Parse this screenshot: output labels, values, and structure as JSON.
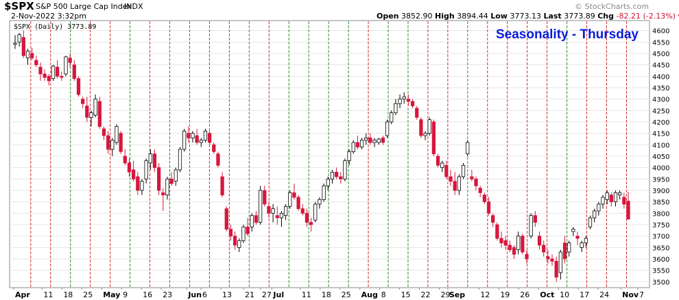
{
  "header": {
    "symbol": "$SPX",
    "name": "S&P 500 Large Cap Index",
    "exchange": "INDX",
    "date": "2-Nov-2022 3:32pm",
    "open_label": "Open",
    "open": "3852.90",
    "high_label": "High",
    "high": "3894.44",
    "low_label": "Low",
    "low": "3773.13",
    "last_label": "Last",
    "last": "3773.89",
    "chg_label": "Chg",
    "chg": "-82.21 (-2.13%)",
    "chg_icon": "down-triangle-icon",
    "credit": "© StockCharts.com"
  },
  "chart_data": {
    "type": "candlestick",
    "title": "Seasonality - Thursday",
    "legend": "$SPX (Daily) 3773.89",
    "ylim": [
      3480,
      4620
    ],
    "y_ticks": [
      3500,
      3550,
      3600,
      3650,
      3700,
      3750,
      3800,
      3850,
      3900,
      3950,
      4000,
      4050,
      4100,
      4150,
      4200,
      4250,
      4300,
      4350,
      4400,
      4450,
      4500,
      4550,
      4600
    ],
    "x_labels": [
      "Apr",
      "11",
      "18",
      "25",
      "May",
      "9",
      "16",
      "23",
      "Jun",
      "6",
      "13",
      "21",
      "27",
      "Jul",
      "11",
      "18",
      "25",
      "Aug",
      "8",
      "15",
      "22",
      "29",
      "Sep",
      "12",
      "19",
      "26",
      "Oct",
      "10",
      "17",
      "24",
      "Nov",
      "7"
    ],
    "x_label_bold": [
      "Apr",
      "May",
      "Jun",
      "Jul",
      "Aug",
      "Sep",
      "Oct",
      "Nov"
    ],
    "start_date": "2022-04-01",
    "end_date": "2022-11-07",
    "thursday_markers": [
      "Apr 7",
      "Apr 14",
      "Apr 21",
      "Apr 28",
      "May 5",
      "May 12",
      "May 19",
      "May 26",
      "Jun 2",
      "Jun 9",
      "Jun 16",
      "Jun 23",
      "Jun 30",
      "Jul 7",
      "Jul 14",
      "Jul 21",
      "Jul 28",
      "Aug 4",
      "Aug 11",
      "Aug 18",
      "Aug 25",
      "Sep 1",
      "Sep 8",
      "Sep 15",
      "Sep 22",
      "Sep 29",
      "Oct 6",
      "Oct 13",
      "Oct 20",
      "Oct 27",
      "Nov 3"
    ],
    "thursday_up": [
      false,
      false,
      true,
      false,
      false,
      true,
      false,
      true,
      true,
      false,
      false,
      true,
      false,
      true,
      true,
      true,
      true,
      false,
      true,
      true,
      false,
      false,
      true,
      false,
      false,
      false,
      false,
      true,
      false,
      false,
      false
    ],
    "up_color": "#2e8b2e",
    "down_color": "#d42a2a",
    "candle_down_color": "#d6173e",
    "candle_up_color": "#ffffff",
    "title_color": "#0a1bd9",
    "grid": true,
    "candles": [
      [
        4540,
        4580,
        4520,
        4545
      ],
      [
        4550,
        4590,
        4530,
        4582
      ],
      [
        4570,
        4600,
        4480,
        4490
      ],
      [
        4480,
        4520,
        4450,
        4510
      ],
      [
        4500,
        4525,
        4470,
        4480
      ],
      [
        4470,
        4490,
        4440,
        4450
      ],
      [
        4440,
        4460,
        4380,
        4410
      ],
      [
        4410,
        4430,
        4380,
        4395
      ],
      [
        4400,
        4410,
        4360,
        4380
      ],
      [
        4390,
        4450,
        4380,
        4445
      ],
      [
        4440,
        4470,
        4390,
        4400
      ],
      [
        4400,
        4420,
        4380,
        4395
      ],
      [
        4410,
        4490,
        4400,
        4485
      ],
      [
        4480,
        4500,
        4440,
        4460
      ],
      [
        4450,
        4470,
        4380,
        4390
      ],
      [
        4390,
        4400,
        4310,
        4320
      ],
      [
        4300,
        4310,
        4260,
        4280
      ],
      [
        4270,
        4310,
        4200,
        4220
      ],
      [
        4220,
        4250,
        4180,
        4240
      ],
      [
        4230,
        4320,
        4220,
        4300
      ],
      [
        4290,
        4310,
        4170,
        4180
      ],
      [
        4170,
        4180,
        4120,
        4140
      ],
      [
        4140,
        4160,
        4060,
        4080
      ],
      [
        4080,
        4130,
        4050,
        4120
      ],
      [
        4110,
        4190,
        4100,
        4180
      ],
      [
        4150,
        4160,
        4060,
        4070
      ],
      [
        4050,
        4080,
        4010,
        4020
      ],
      [
        4020,
        4040,
        3960,
        3980
      ],
      [
        3990,
        4030,
        3940,
        3950
      ],
      [
        3960,
        3980,
        3880,
        3900
      ],
      [
        3900,
        3950,
        3880,
        3940
      ],
      [
        3950,
        4040,
        3930,
        4030
      ],
      [
        4020,
        4080,
        3990,
        4060
      ],
      [
        4060,
        4080,
        3980,
        4000
      ],
      [
        4000,
        4020,
        3880,
        3900
      ],
      [
        3890,
        3910,
        3810,
        3880
      ],
      [
        3880,
        3960,
        3860,
        3950
      ],
      [
        3950,
        3980,
        3920,
        3930
      ],
      [
        3940,
        4000,
        3920,
        3990
      ],
      [
        3990,
        4090,
        3980,
        4080
      ],
      [
        4080,
        4170,
        4070,
        4160
      ],
      [
        4150,
        4180,
        4110,
        4130
      ],
      [
        4130,
        4160,
        4110,
        4150
      ],
      [
        4140,
        4170,
        4100,
        4110
      ],
      [
        4110,
        4130,
        4090,
        4120
      ],
      [
        4120,
        4170,
        4110,
        4160
      ],
      [
        4150,
        4160,
        4100,
        4110
      ],
      [
        4100,
        4110,
        4060,
        4070
      ],
      [
        4060,
        4070,
        4000,
        4010
      ],
      [
        3960,
        3980,
        3870,
        3880
      ],
      [
        3820,
        3830,
        3720,
        3730
      ],
      [
        3730,
        3750,
        3680,
        3700
      ],
      [
        3700,
        3720,
        3640,
        3660
      ],
      [
        3650,
        3690,
        3630,
        3680
      ],
      [
        3680,
        3750,
        3670,
        3740
      ],
      [
        3740,
        3780,
        3700,
        3710
      ],
      [
        3740,
        3800,
        3720,
        3790
      ],
      [
        3790,
        3810,
        3750,
        3760
      ],
      [
        3760,
        3920,
        3750,
        3900
      ],
      [
        3900,
        3920,
        3830,
        3840
      ],
      [
        3830,
        3850,
        3780,
        3800
      ],
      [
        3800,
        3840,
        3760,
        3820
      ],
      [
        3790,
        3830,
        3750,
        3780
      ],
      [
        3780,
        3810,
        3740,
        3800
      ],
      [
        3790,
        3840,
        3770,
        3830
      ],
      [
        3830,
        3900,
        3820,
        3890
      ],
      [
        3890,
        3930,
        3860,
        3870
      ],
      [
        3870,
        3880,
        3810,
        3820
      ],
      [
        3820,
        3840,
        3790,
        3800
      ],
      [
        3800,
        3820,
        3740,
        3760
      ],
      [
        3760,
        3780,
        3720,
        3750
      ],
      [
        3770,
        3850,
        3760,
        3840
      ],
      [
        3840,
        3870,
        3820,
        3860
      ],
      [
        3860,
        3930,
        3850,
        3920
      ],
      [
        3920,
        3960,
        3900,
        3950
      ],
      [
        3950,
        3990,
        3930,
        3980
      ],
      [
        3980,
        4000,
        3950,
        3960
      ],
      [
        3960,
        3980,
        3930,
        3950
      ],
      [
        3950,
        4040,
        3940,
        4030
      ],
      [
        4030,
        4080,
        4010,
        4070
      ],
      [
        4070,
        4120,
        4060,
        4110
      ],
      [
        4110,
        4140,
        4080,
        4090
      ],
      [
        4090,
        4130,
        4080,
        4120
      ],
      [
        4120,
        4150,
        4100,
        4130
      ],
      [
        4130,
        4150,
        4100,
        4110
      ],
      [
        4110,
        4130,
        4090,
        4120
      ],
      [
        4110,
        4130,
        4100,
        4125
      ],
      [
        4130,
        4140,
        4100,
        4110
      ],
      [
        4140,
        4210,
        4130,
        4200
      ],
      [
        4200,
        4250,
        4190,
        4240
      ],
      [
        4240,
        4300,
        4230,
        4280
      ],
      [
        4280,
        4320,
        4260,
        4300
      ],
      [
        4300,
        4330,
        4280,
        4310
      ],
      [
        4300,
        4320,
        4270,
        4290
      ],
      [
        4290,
        4300,
        4260,
        4270
      ],
      [
        4260,
        4270,
        4210,
        4220
      ],
      [
        4210,
        4220,
        4130,
        4140
      ],
      [
        4140,
        4160,
        4120,
        4150
      ],
      [
        4150,
        4220,
        4140,
        4210
      ],
      [
        4200,
        4210,
        4050,
        4060
      ],
      [
        4050,
        4060,
        4000,
        4010
      ],
      [
        4000,
        4030,
        3980,
        4020
      ],
      [
        4010,
        4030,
        3950,
        3960
      ],
      [
        3960,
        3990,
        3920,
        3940
      ],
      [
        3940,
        3980,
        3880,
        3900
      ],
      [
        3900,
        3970,
        3880,
        3960
      ],
      [
        3960,
        4020,
        3950,
        4010
      ],
      [
        4060,
        4120,
        4050,
        4110
      ],
      [
        3960,
        3990,
        3940,
        3950
      ],
      [
        3950,
        3960,
        3900,
        3920
      ],
      [
        3910,
        3920,
        3870,
        3890
      ],
      [
        3880,
        3890,
        3840,
        3850
      ],
      [
        3850,
        3870,
        3790,
        3800
      ],
      [
        3790,
        3800,
        3740,
        3760
      ],
      [
        3750,
        3760,
        3680,
        3690
      ],
      [
        3690,
        3720,
        3650,
        3670
      ],
      [
        3680,
        3700,
        3640,
        3660
      ],
      [
        3660,
        3680,
        3630,
        3640
      ],
      [
        3650,
        3660,
        3600,
        3620
      ],
      [
        3640,
        3720,
        3620,
        3700
      ],
      [
        3700,
        3710,
        3620,
        3630
      ],
      [
        3620,
        3640,
        3580,
        3600
      ],
      [
        3700,
        3800,
        3690,
        3790
      ],
      [
        3790,
        3810,
        3740,
        3760
      ],
      [
        3700,
        3720,
        3640,
        3660
      ],
      [
        3660,
        3680,
        3610,
        3630
      ],
      [
        3610,
        3640,
        3580,
        3600
      ],
      [
        3600,
        3620,
        3570,
        3590
      ],
      [
        3590,
        3610,
        3500,
        3520
      ],
      [
        3540,
        3640,
        3510,
        3630
      ],
      [
        3670,
        3700,
        3580,
        3600
      ],
      [
        3630,
        3680,
        3610,
        3670
      ],
      [
        3720,
        3740,
        3700,
        3730
      ],
      [
        3700,
        3720,
        3660,
        3690
      ],
      [
        3650,
        3680,
        3630,
        3670
      ],
      [
        3670,
        3700,
        3650,
        3690
      ],
      [
        3740,
        3790,
        3730,
        3780
      ],
      [
        3780,
        3820,
        3760,
        3810
      ],
      [
        3810,
        3850,
        3790,
        3840
      ],
      [
        3840,
        3880,
        3820,
        3870
      ],
      [
        3860,
        3900,
        3840,
        3890
      ],
      [
        3880,
        3890,
        3830,
        3850
      ],
      [
        3850,
        3900,
        3830,
        3890
      ],
      [
        3880,
        3900,
        3860,
        3890
      ],
      [
        3870,
        3890,
        3820,
        3840
      ],
      [
        3853,
        3894,
        3773,
        3774
      ]
    ]
  }
}
